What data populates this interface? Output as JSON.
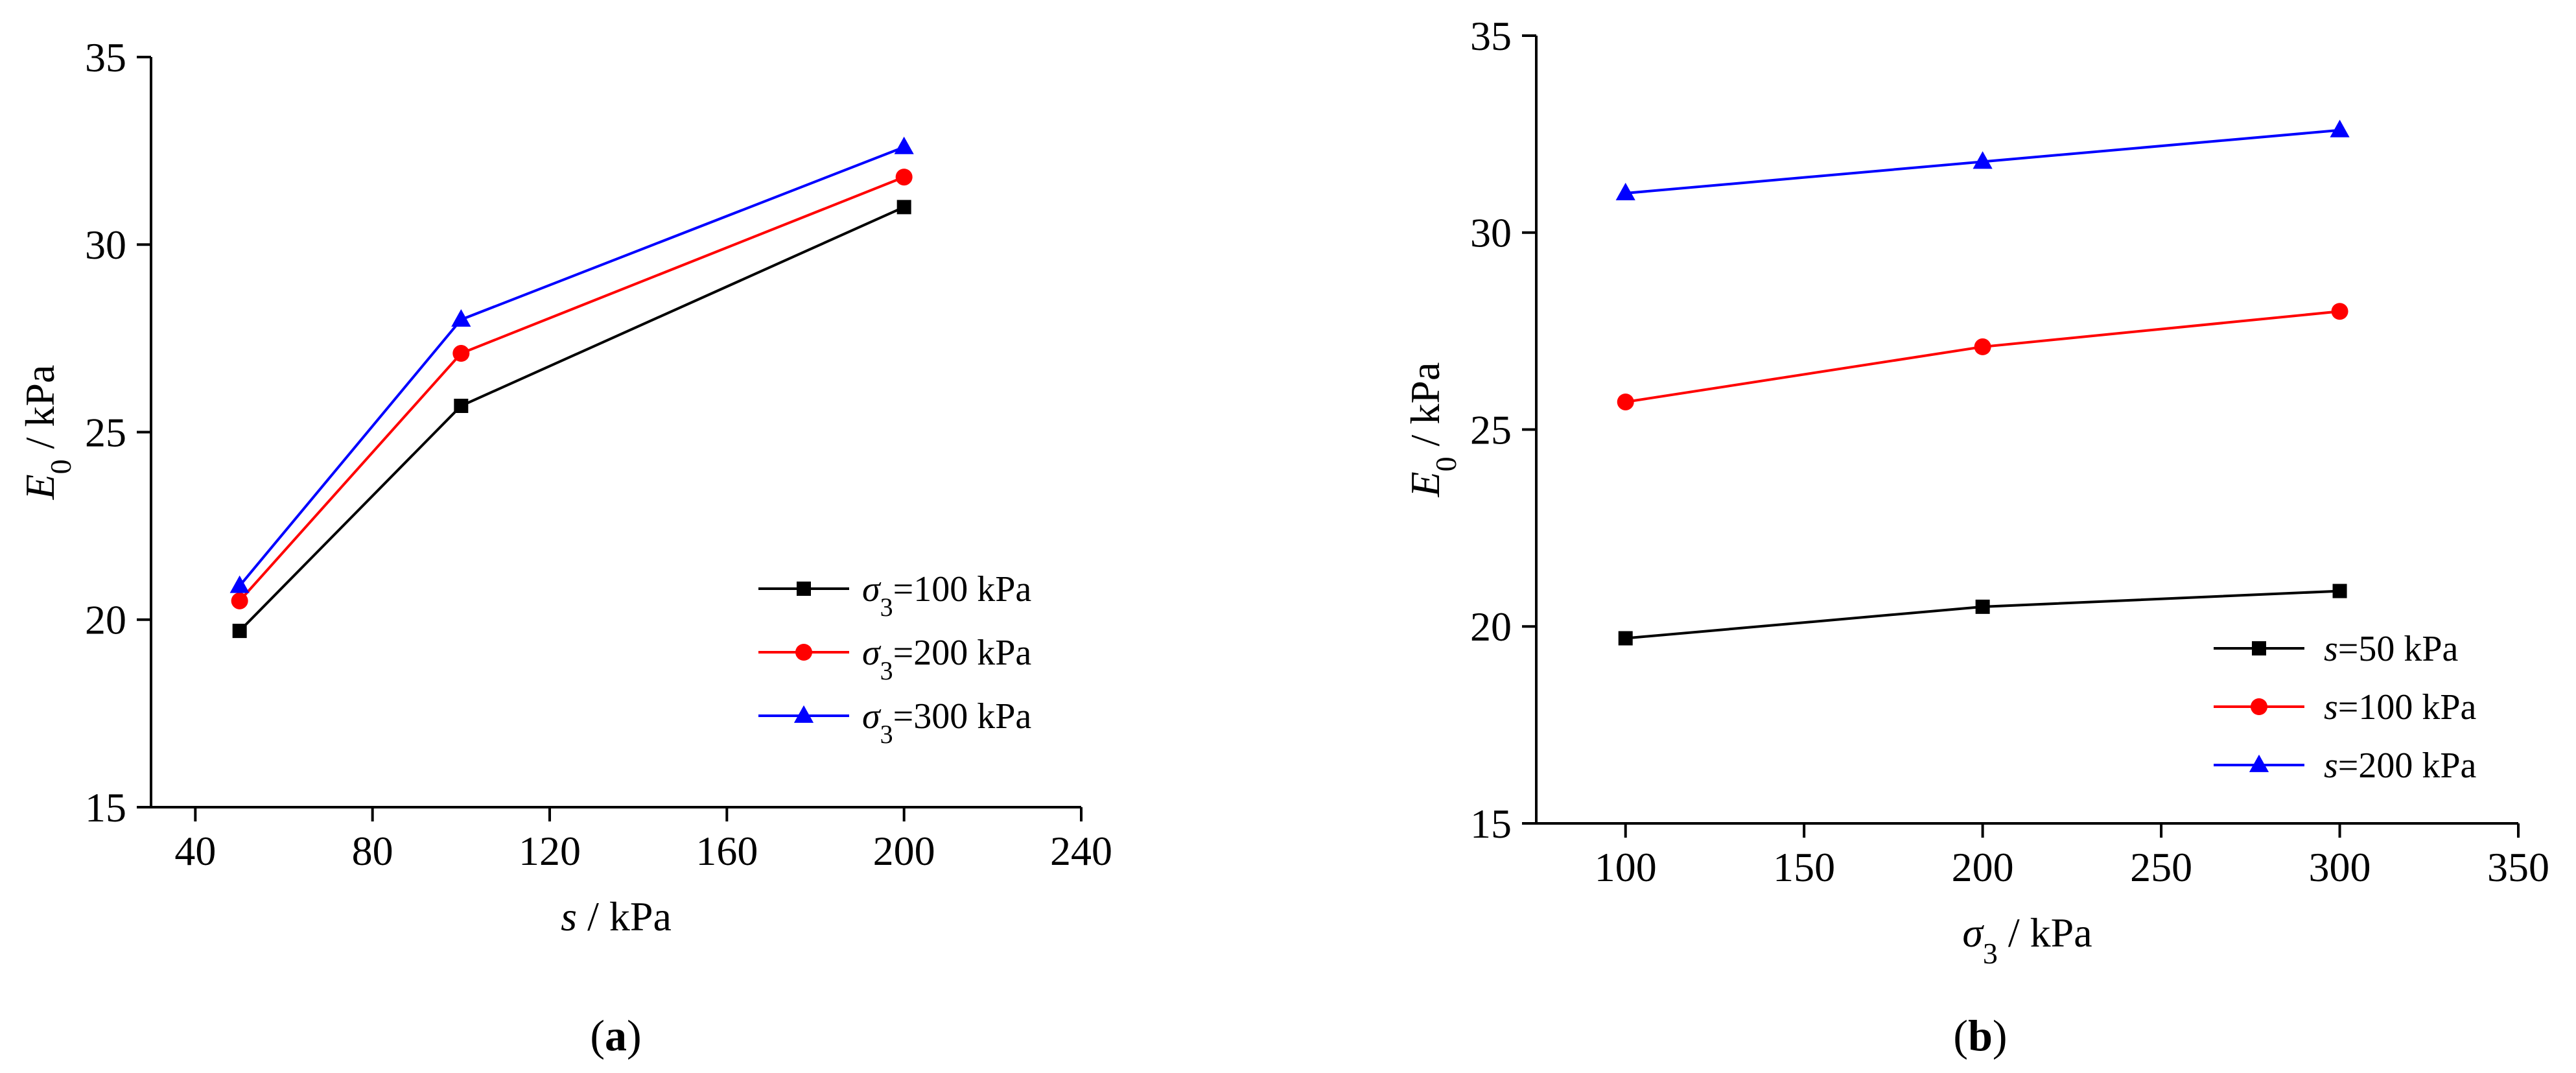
{
  "chart_data": [
    {
      "panel_label": "(a)",
      "type": "line",
      "xlabel": "s / kPa",
      "ylabel": "E0 / kPa",
      "xlabel_parts": {
        "sym": "s",
        "sub": "",
        "unit": " / kPa"
      },
      "ylabel_parts": {
        "sym": "E",
        "sub": "0",
        "unit": " / kPa"
      },
      "xlim": [
        30,
        240
      ],
      "ylim": [
        15,
        35
      ],
      "xticks": [
        40,
        80,
        120,
        160,
        200,
        240
      ],
      "yticks": [
        15,
        20,
        25,
        30,
        35
      ],
      "grid": false,
      "legend_position": "bottom-right",
      "series": [
        {
          "name": "σ3=100 kPa",
          "sym": "σ",
          "sub": "3",
          "rest": "=100 kPa",
          "color": "#000000",
          "marker": "square",
          "x": [
            50,
            100,
            200
          ],
          "values": [
            19.7,
            25.7,
            31.0
          ]
        },
        {
          "name": "σ3=200 kPa",
          "sym": "σ",
          "sub": "3",
          "rest": "=200 kPa",
          "color": "#ff0000",
          "marker": "circle",
          "x": [
            50,
            100,
            200
          ],
          "values": [
            20.5,
            27.1,
            31.8
          ]
        },
        {
          "name": "σ3=300 kPa",
          "sym": "σ",
          "sub": "3",
          "rest": "=300 kPa",
          "color": "#0000ff",
          "marker": "triangle",
          "x": [
            50,
            100,
            200
          ],
          "values": [
            20.9,
            28.0,
            32.6
          ]
        }
      ]
    },
    {
      "panel_label": "(b)",
      "type": "line",
      "xlabel": "σ3 / kPa",
      "ylabel": "E0 / kPa",
      "xlabel_parts": {
        "sym": "σ",
        "sub": "3",
        "unit": " / kPa"
      },
      "ylabel_parts": {
        "sym": "E",
        "sub": "0",
        "unit": " / kPa"
      },
      "xlim": [
        75,
        350
      ],
      "ylim": [
        15,
        35
      ],
      "xticks": [
        100,
        150,
        200,
        250,
        300,
        350
      ],
      "yticks": [
        15,
        20,
        25,
        30,
        35
      ],
      "grid": false,
      "legend_position": "bottom-right",
      "series": [
        {
          "name": "s=50 kPa",
          "sym": "s",
          "sub": "",
          "rest": "=50 kPa",
          "color": "#000000",
          "marker": "square",
          "x": [
            100,
            200,
            300
          ],
          "values": [
            19.7,
            20.5,
            20.9
          ]
        },
        {
          "name": "s=100 kPa",
          "sym": "s",
          "sub": "",
          "rest": "=100 kPa",
          "color": "#ff0000",
          "marker": "circle",
          "x": [
            100,
            200,
            300
          ],
          "values": [
            25.7,
            27.1,
            28.0
          ]
        },
        {
          "name": "s=200 kPa",
          "sym": "s",
          "sub": "",
          "rest": "=200 kPa",
          "color": "#0000ff",
          "marker": "triangle",
          "x": [
            100,
            200,
            300
          ],
          "values": [
            31.0,
            31.8,
            32.6
          ]
        }
      ]
    }
  ]
}
